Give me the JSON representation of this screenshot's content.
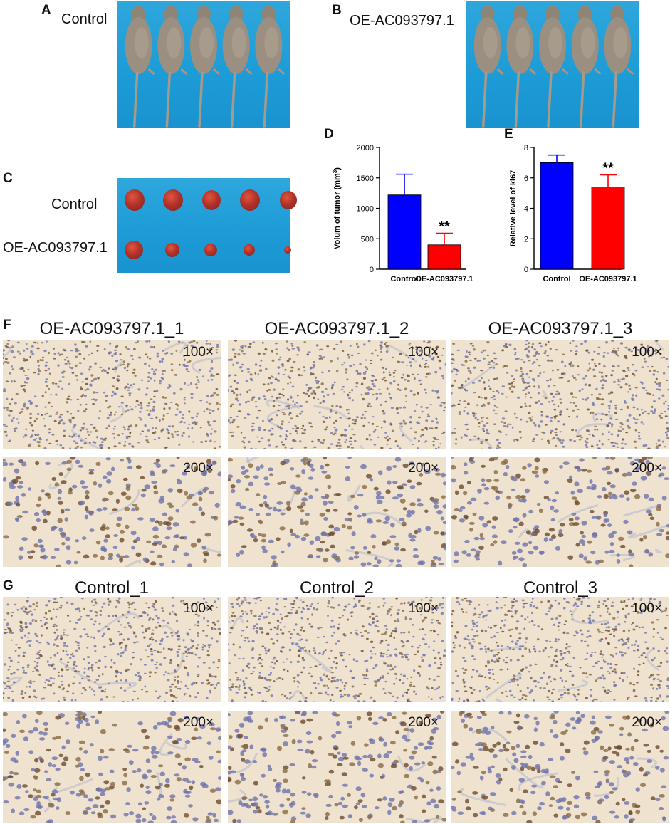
{
  "panels": {
    "A": {
      "letter": "A",
      "group": "Control"
    },
    "B": {
      "letter": "B",
      "group": "OE-AC093797.1"
    },
    "C": {
      "letter": "C",
      "rows": [
        "Control",
        "OE-AC093797.1"
      ]
    },
    "D": {
      "letter": "D"
    },
    "E": {
      "letter": "E"
    },
    "F": {
      "letter": "F",
      "columns": [
        "OE-AC093797.1_1",
        "OE-AC093797.1_2",
        "OE-AC093797.1_3"
      ],
      "mags": [
        "100×",
        "200×"
      ]
    },
    "G": {
      "letter": "G",
      "columns": [
        "Control_1",
        "Control_2",
        "Control_3"
      ],
      "mags": [
        "100×",
        "200×"
      ]
    }
  },
  "colors": {
    "control": "#0000ff",
    "oe": "#ff0000",
    "photo_bg": "#1e9fd8",
    "tumor": "#b2322a",
    "stain_bg": "#efe3cf"
  },
  "chart_data": [
    {
      "type": "bar",
      "ylabel": "Volum of tumor (mm",
      "ylabel_sup": "3",
      "ylabel_close": ")",
      "categories": [
        "Control",
        "OE-AC093797.1"
      ],
      "values": [
        1220,
        400
      ],
      "errors": [
        340,
        190
      ],
      "ylim": [
        0,
        2000
      ],
      "yticks": [
        "0",
        "500",
        "1000",
        "1500",
        "2000"
      ],
      "significance": [
        "",
        "**"
      ]
    },
    {
      "type": "bar",
      "ylabel": "Relative level of ki67",
      "categories": [
        "Control",
        "OE-AC093797.1"
      ],
      "values": [
        7.0,
        5.4
      ],
      "errors": [
        0.5,
        0.8
      ],
      "ylim": [
        0,
        8
      ],
      "yticks": [
        "0",
        "2",
        "4",
        "6",
        "8"
      ],
      "significance": [
        "",
        "**"
      ]
    }
  ]
}
